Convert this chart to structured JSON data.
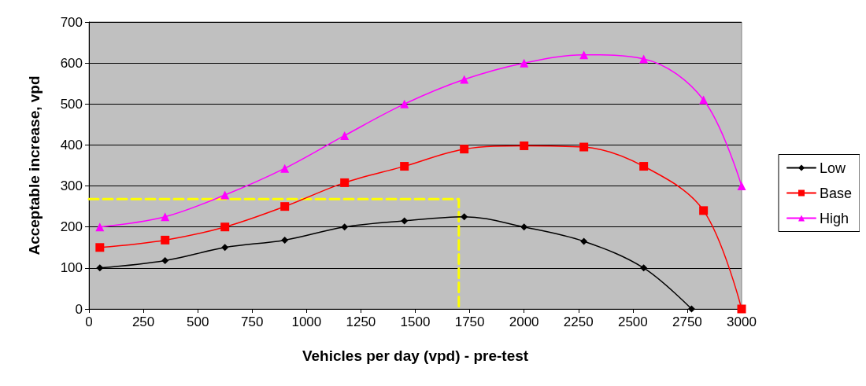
{
  "chart_data": {
    "type": "line",
    "xlabel": "Vehicles per day (vpd) - pre-test",
    "ylabel": "Acceptable increase, vpd",
    "xlim": [
      0,
      3000
    ],
    "xticks": [
      0,
      250,
      500,
      750,
      1000,
      1250,
      1500,
      1750,
      2000,
      2250,
      2500,
      2750,
      3000
    ],
    "ylim": [
      0,
      700
    ],
    "yticks": [
      0,
      100,
      200,
      300,
      400,
      500,
      600,
      700
    ],
    "grid": "y",
    "legend": "right",
    "series": [
      {
        "name": "Low",
        "color": "#000000",
        "marker": "diamond",
        "x": [
          50,
          350,
          625,
          900,
          1175,
          1450,
          1725,
          2000,
          2275,
          2550,
          2770
        ],
        "values": [
          100,
          118,
          150,
          168,
          200,
          215,
          225,
          200,
          165,
          100,
          0
        ]
      },
      {
        "name": "Base",
        "color": "#ff0000",
        "marker": "square",
        "x": [
          50,
          350,
          625,
          900,
          1175,
          1450,
          1725,
          2000,
          2275,
          2550,
          2825,
          3000
        ],
        "values": [
          150,
          168,
          200,
          250,
          308,
          348,
          390,
          398,
          395,
          348,
          240,
          0
        ]
      },
      {
        "name": "High",
        "color": "#ff00ff",
        "marker": "triangle",
        "x": [
          50,
          350,
          625,
          900,
          1175,
          1450,
          1725,
          2000,
          2275,
          2550,
          2825,
          3000
        ],
        "values": [
          200,
          225,
          278,
          343,
          423,
          500,
          560,
          600,
          620,
          610,
          510,
          300
        ]
      },
      {
        "color": "#ffff00",
        "marker": "none",
        "line_style": "dashed",
        "x": [
          0,
          1700,
          1700
        ],
        "values": [
          268,
          268,
          0
        ]
      }
    ]
  }
}
